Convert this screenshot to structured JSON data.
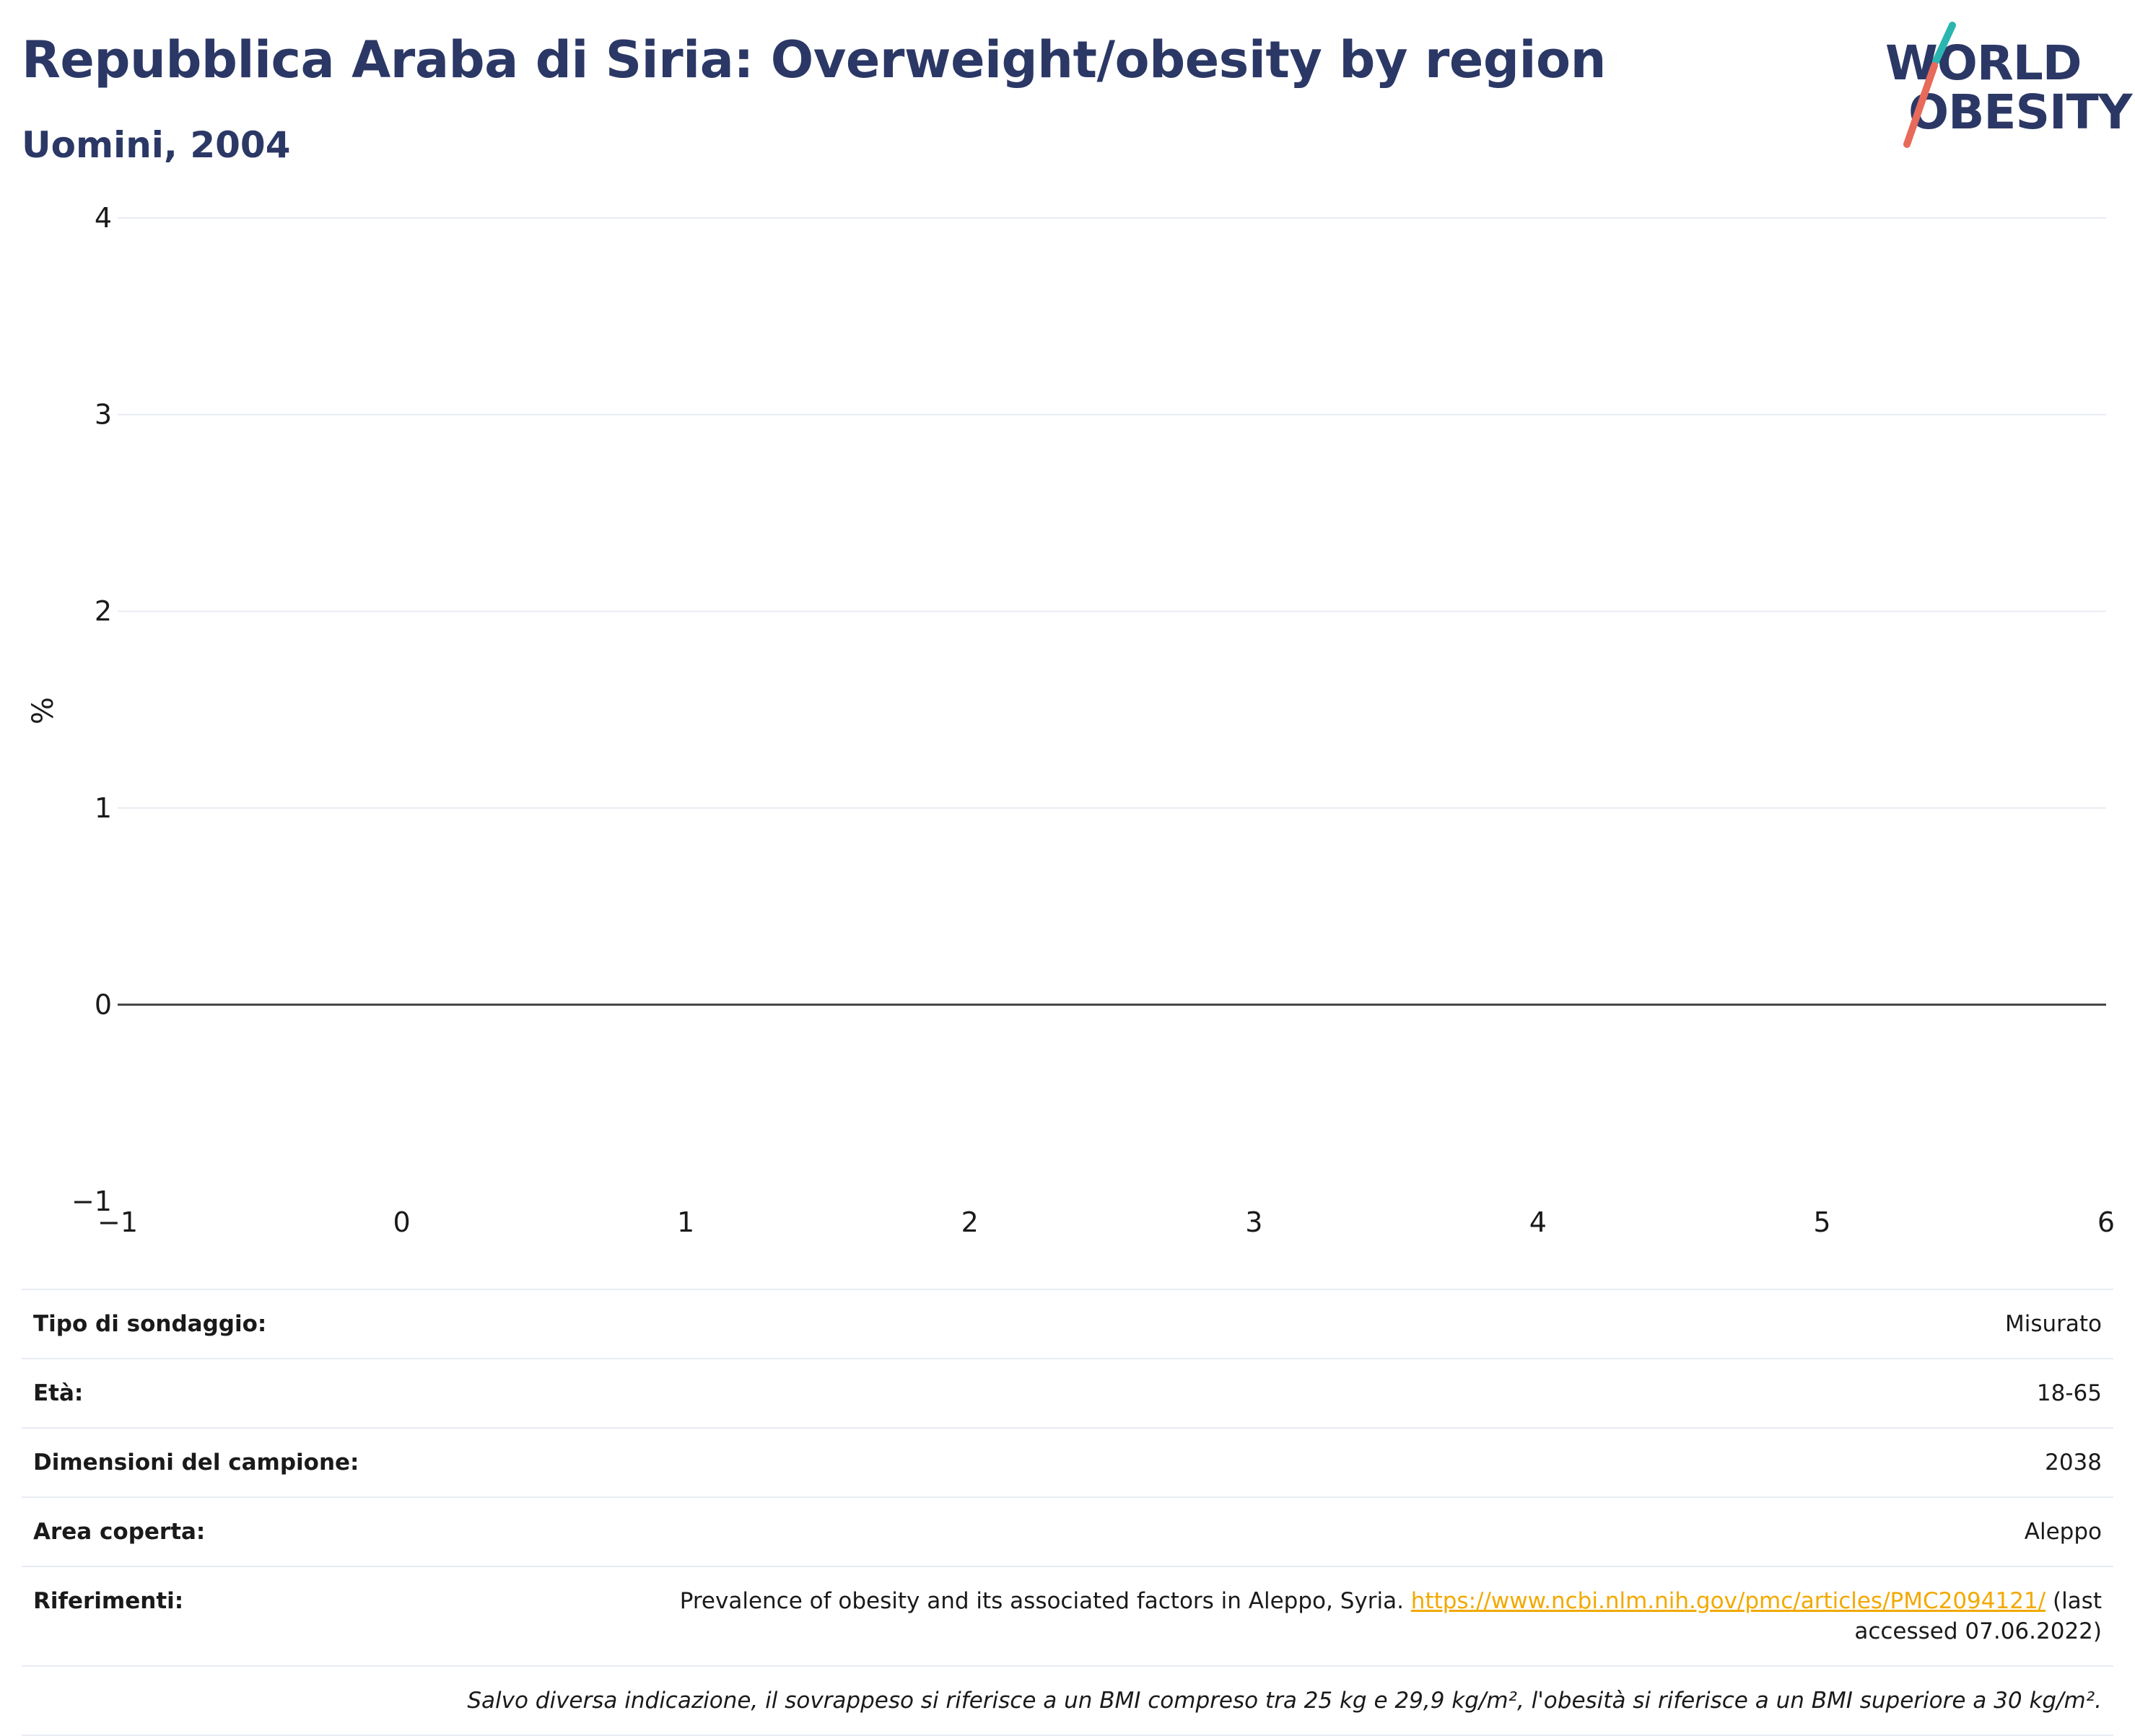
{
  "header": {
    "title": "Repubblica Araba di Siria: Overweight/obesity by region",
    "subtitle": "Uomini, 2004"
  },
  "logo": {
    "line1": "WORLD",
    "line2": "OBESITY",
    "slash_colors": [
      "#2bb5b0",
      "#e86a5a"
    ]
  },
  "colors": {
    "title": "#2b3866",
    "link": "#f2a900",
    "grid": "#e8ecf3",
    "zero_line": "#444444"
  },
  "chart_data": {
    "type": "bar",
    "title": "",
    "xlabel": "",
    "ylabel": "%",
    "xlim": [
      -1,
      6
    ],
    "ylim": [
      -1,
      4
    ],
    "x_ticks": [
      "−1",
      "0",
      "1",
      "2",
      "3",
      "4",
      "5",
      "6"
    ],
    "y_ticks": [
      "−1",
      "0",
      "1",
      "2",
      "3",
      "4"
    ],
    "series": [],
    "grid": true
  },
  "meta": {
    "rows": [
      {
        "key": "Tipo di sondaggio:",
        "value": "Misurato"
      },
      {
        "key": "Età:",
        "value": "18-65"
      },
      {
        "key": "Dimensioni del campione:",
        "value": "2038"
      },
      {
        "key": "Area coperta:",
        "value": "Aleppo"
      }
    ],
    "references": {
      "key": "Riferimenti:",
      "text_before": "Prevalence of obesity and its associated factors in Aleppo, Syria. ",
      "link": "https://www.ncbi.nlm.nih.gov/pmc/articles/PMC2094121/",
      "text_after": " (last accessed 07.06.2022)"
    },
    "note": "Salvo diversa indicazione, il sovrappeso si riferisce a un BMI compreso tra 25 kg e 29,9 kg/m², l'obesità si riferisce a un BMI superiore a 30 kg/m²."
  }
}
